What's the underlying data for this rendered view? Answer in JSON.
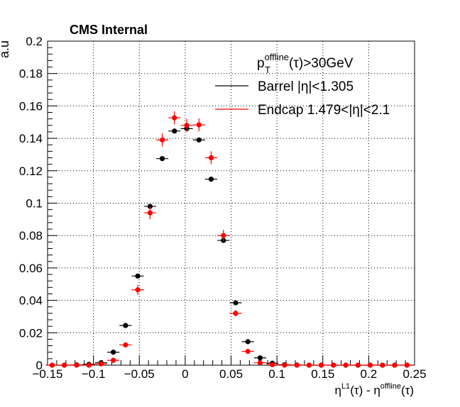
{
  "chart_data": {
    "type": "scatter",
    "title": "CMS Internal",
    "xlabel_main": "η",
    "xlabel_sup1": "L1",
    "xlabel_mid": "(τ) - η",
    "xlabel_sup2": "offline",
    "xlabel_end": "(τ)",
    "ylabel": "a.u",
    "xlim": [
      -0.15,
      0.25
    ],
    "ylim": [
      0,
      0.2
    ],
    "grid": true,
    "legend_placement": "top-right",
    "legend_header_main": "p",
    "legend_header_sup": "offline",
    "legend_header_sub": "T",
    "legend_header_end": "(τ)>30GeV",
    "x_ticks": [
      "−0.15",
      "−0.1",
      "−0.05",
      "0",
      "0.05",
      "0.1",
      "0.15",
      "0.2",
      "0.25"
    ],
    "y_ticks": [
      "0",
      "0.02",
      "0.04",
      "0.06",
      "0.08",
      "0.1",
      "0.12",
      "0.14",
      "0.16",
      "0.18",
      "0.2"
    ],
    "series": [
      {
        "name": "Barrel |η|<1.305",
        "color": "#000000",
        "x": [
          -0.145,
          -0.1317,
          -0.1183,
          -0.105,
          -0.0917,
          -0.0783,
          -0.065,
          -0.0517,
          -0.0383,
          -0.025,
          -0.0117,
          0.0017,
          0.015,
          0.0283,
          0.0417,
          0.055,
          0.0683,
          0.0817,
          0.095,
          0.1083,
          0.1217,
          0.135,
          0.1483,
          0.1617,
          0.175,
          0.1883,
          0.2017,
          0.215,
          0.2283,
          0.2417
        ],
        "y": [
          0.0,
          0.0,
          0.0002,
          0.0005,
          0.0015,
          0.008,
          0.0245,
          0.055,
          0.098,
          0.1275,
          0.1445,
          0.146,
          0.139,
          0.1148,
          0.077,
          0.0385,
          0.0145,
          0.0045,
          0.0012,
          0.0003,
          0.0001,
          0.0,
          0.0,
          0.0,
          0.0,
          0.0,
          0.0,
          0.0,
          0.0,
          0.0
        ],
        "yerr": [
          0.0,
          0.0,
          0.0,
          0.0,
          0.0,
          0.0,
          0.0,
          0.0,
          0.0,
          0.0,
          0.0,
          0.0,
          0.0,
          0.0,
          0.0,
          0.0,
          0.0,
          0.0,
          0.0,
          0.0,
          0.0,
          0.0,
          0.0,
          0.0,
          0.0,
          0.0,
          0.0,
          0.0,
          0.0,
          0.0
        ]
      },
      {
        "name": "Endcap 1.479<|η|<2.1",
        "color": "#ff0000",
        "x": [
          -0.145,
          -0.1317,
          -0.1183,
          -0.105,
          -0.0917,
          -0.0783,
          -0.065,
          -0.0517,
          -0.0383,
          -0.025,
          -0.0117,
          0.0017,
          0.015,
          0.0283,
          0.0417,
          0.055,
          0.0683,
          0.0817,
          0.095,
          0.1083,
          0.1217,
          0.135,
          0.1483,
          0.1617,
          0.175,
          0.1883,
          0.2017,
          0.215,
          0.2283,
          0.2417
        ],
        "y": [
          0.0,
          0.0,
          0.0,
          0.0,
          0.0008,
          0.003,
          0.0125,
          0.0465,
          0.094,
          0.139,
          0.1527,
          0.148,
          0.1483,
          0.128,
          0.08,
          0.032,
          0.0085,
          0.0015,
          0.0003,
          0.0,
          0.0,
          0.0,
          0.0,
          0.0,
          0.0,
          0.0,
          0.0,
          0.0,
          0.0,
          0.0
        ],
        "yerr": [
          0.0,
          0.0,
          0.0,
          0.0,
          0.0004,
          0.0008,
          0.0015,
          0.003,
          0.004,
          0.004,
          0.004,
          0.004,
          0.004,
          0.004,
          0.0035,
          0.002,
          0.0012,
          0.0005,
          0.0,
          0.0,
          0.0,
          0.0,
          0.0,
          0.0,
          0.0,
          0.0,
          0.0,
          0.0,
          0.0,
          0.0
        ]
      }
    ]
  }
}
